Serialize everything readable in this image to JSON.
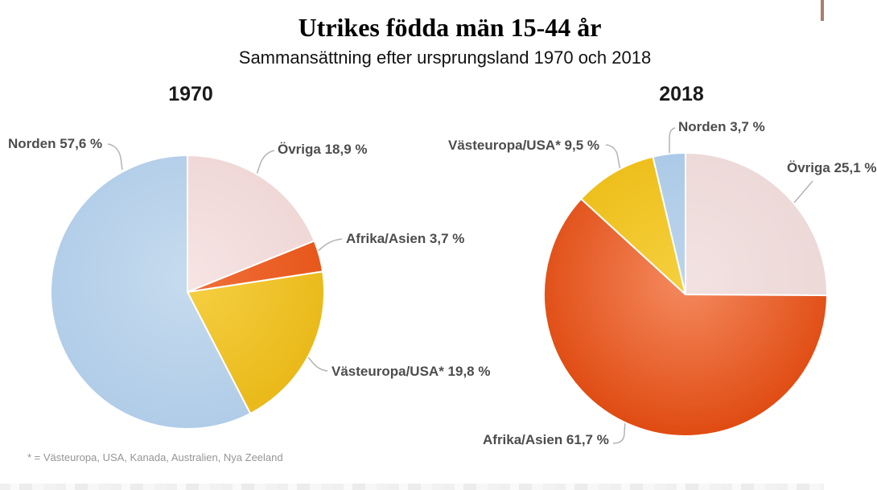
{
  "chart_data": {
    "type": "pie",
    "title": "Utrikes födda män 15-44 år",
    "subtitle": "Sammansättning efter ursprungsland 1970 och 2018",
    "footnote": "* = Västeuropa, USA, Kanada, Australien, Nya Zeeland",
    "legend_position": "none",
    "label_style": "callout-labels-with-leader-lines",
    "pies": [
      {
        "year": "1970",
        "slices": [
          {
            "label": "Övriga",
            "value": 18.9,
            "display": "Övriga 18,9 %",
            "color_inner": "#f6e4e3",
            "color_outer": "#eed5d4"
          },
          {
            "label": "Afrika/Asien",
            "value": 3.7,
            "display": "Afrika/Asien 3,7 %",
            "color_inner": "#f0703a",
            "color_outer": "#e65417"
          },
          {
            "label": "Västeuropa/USA*",
            "value": 19.8,
            "display": "Västeuropa/USA* 19,8 %",
            "color_inner": "#f6d044",
            "color_outer": "#e9b818"
          },
          {
            "label": "Norden",
            "value": 57.6,
            "display": "Norden 57,6 %",
            "color_inner": "#c6dbee",
            "color_outer": "#b0cce8"
          }
        ]
      },
      {
        "year": "2018",
        "slices": [
          {
            "label": "Övriga",
            "value": 25.1,
            "display": "Övriga 25,1 %",
            "color_inner": "#f2e2e1",
            "color_outer": "#ebd7d6"
          },
          {
            "label": "Afrika/Asien",
            "value": 61.7,
            "display": "Afrika/Asien 61,7 %",
            "color_inner": "#f58a60",
            "color_outer": "#df4a10"
          },
          {
            "label": "Västeuropa/USA*",
            "value": 9.5,
            "display": "Västeuropa/USA* 9,5 %",
            "color_inner": "#f5cf3d",
            "color_outer": "#ecbc15"
          },
          {
            "label": "Norden",
            "value": 3.7,
            "display": "Norden 3,7 %",
            "color_inner": "#bcd4ec",
            "color_outer": "#a8c8e6"
          }
        ]
      }
    ],
    "colors": {
      "label_text": "#4d4d4d",
      "leader_line": "#b4b4b4",
      "slice_separator": "#ffffff",
      "corner_sliver": "#ab7e6d"
    }
  }
}
